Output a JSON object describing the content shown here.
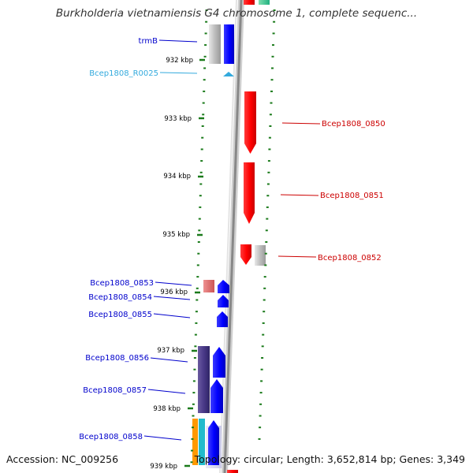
{
  "title": "Burkholderia vietnamiensis G4 chromosome 1, complete sequenc...",
  "footer": {
    "accession": "Accession: NC_009256",
    "summary": "Topology: circular; Length: 3,652,814 bp; Genes: 3,349"
  },
  "scale_labels": [
    "932 kbp",
    "933 kbp",
    "934 kbp",
    "935 kbp",
    "936 kbp",
    "937 kbp",
    "938 kbp",
    "939 kbp"
  ],
  "genes_left": [
    {
      "name": "trmB",
      "color": "#0000cc"
    },
    {
      "name": "Bcep1808_R0025",
      "color": "#33aadd"
    },
    {
      "name": "Bcep1808_0853",
      "color": "#0000cc"
    },
    {
      "name": "Bcep1808_0854",
      "color": "#0000cc"
    },
    {
      "name": "Bcep1808_0855",
      "color": "#0000cc"
    },
    {
      "name": "Bcep1808_0856",
      "color": "#0000cc"
    },
    {
      "name": "Bcep1808_0857",
      "color": "#0000cc"
    },
    {
      "name": "Bcep1808_0858",
      "color": "#0000cc"
    }
  ],
  "genes_right": [
    {
      "name": "Bcep1808_0850",
      "color": "#cc0000"
    },
    {
      "name": "Bcep1808_0851",
      "color": "#cc0000"
    },
    {
      "name": "Bcep1808_0852",
      "color": "#cc0000"
    }
  ],
  "colors": {
    "forward": "#0000ff",
    "reverse": "#ff0000",
    "tick": "#1a7a1a",
    "backbone": "#999999",
    "rna": "#33aadd"
  }
}
